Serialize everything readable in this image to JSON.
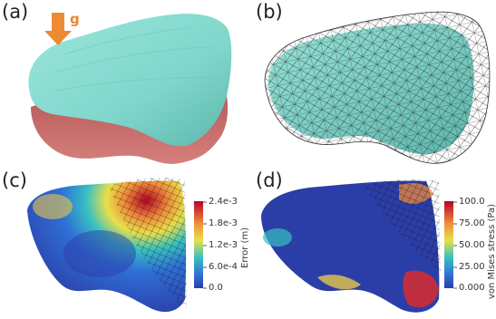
{
  "figure": {
    "panels": [
      {
        "id": "a",
        "label": "(a)"
      },
      {
        "id": "b",
        "label": "(b)"
      },
      {
        "id": "c",
        "label": "(c)"
      },
      {
        "id": "d",
        "label": "(d)"
      }
    ],
    "gravity_label": "g",
    "colors": {
      "surface_teal": "#7fd6cb",
      "surface_red": "#c96d6b",
      "gravity_arrow": "#ee8a34",
      "mesh_line": "#2d2d2d"
    },
    "colorbar_error": {
      "title": "Error (m)",
      "ticks": [
        "2.4e-3",
        "1.8e-3",
        "1.2e-3",
        "6.0e-4",
        "0.0"
      ],
      "range": [
        0.0,
        0.0024
      ]
    },
    "colorbar_stress": {
      "title": "von Mises stress (Pa)",
      "ticks": [
        "100.0",
        "75.00",
        "50.00",
        "25.00",
        "0.000"
      ],
      "range": [
        0.0,
        100.0
      ]
    }
  }
}
